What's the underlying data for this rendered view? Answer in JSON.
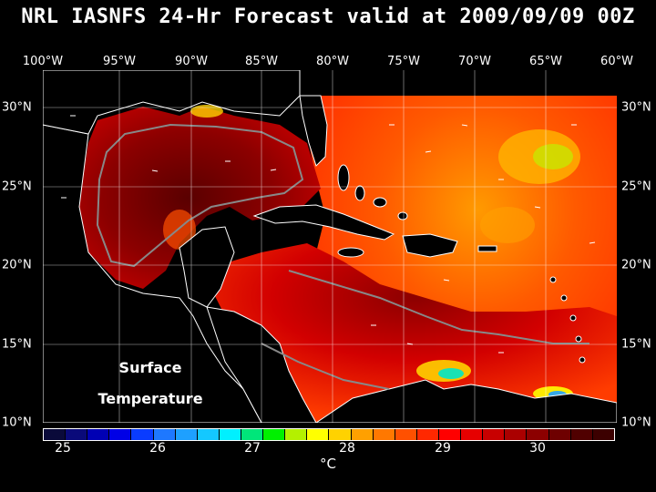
{
  "title": "NRL IASNFS  24-Hr Forecast valid at 2009/09/09 00Z",
  "longitude_labels": [
    "100°W",
    "95°W",
    "90°W",
    "85°W",
    "80°W",
    "75°W",
    "70°W",
    "65°W",
    "60°W"
  ],
  "latitude_labels": [
    "30°N",
    "25°N",
    "20°N",
    "15°N",
    "10°N"
  ],
  "map_label_line1": "Surface",
  "map_label_line2": "Temperature",
  "colorbar": {
    "colors": [
      "#0a0a3a",
      "#0a0a7a",
      "#0000b4",
      "#0000e6",
      "#0a3cff",
      "#1e78ff",
      "#1ea0ff",
      "#14c8ff",
      "#00f0ff",
      "#00e67a",
      "#00f000",
      "#b4f000",
      "#ffff00",
      "#ffd200",
      "#ffa000",
      "#ff7800",
      "#ff5000",
      "#ff2800",
      "#ff0000",
      "#e60000",
      "#c80000",
      "#aa0000",
      "#8c0000",
      "#6e0000",
      "#500000",
      "#3c0000"
    ],
    "tick_labels": [
      "25",
      "26",
      "27",
      "28",
      "29",
      "30"
    ],
    "unit": "°C"
  },
  "colors": {
    "land": "#000000",
    "coast": "#ffffff",
    "bathymetry": "#888888",
    "grid": "#ffffff"
  }
}
